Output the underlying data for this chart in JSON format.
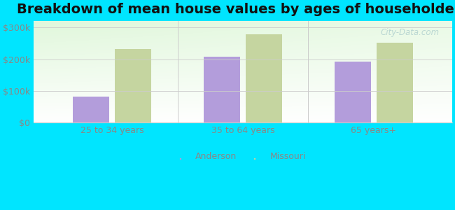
{
  "title": "Breakdown of mean house values by ages of householders",
  "categories": [
    "25 to 34 years",
    "35 to 64 years",
    "65 years+"
  ],
  "anderson_values": [
    82000,
    207000,
    193000
  ],
  "missouri_values": [
    233000,
    278000,
    252000
  ],
  "anderson_color": "#b39ddb",
  "missouri_color": "#c5d5a0",
  "ylim": [
    0,
    320000
  ],
  "yticks": [
    0,
    100000,
    200000,
    300000
  ],
  "ytick_labels": [
    "$0",
    "$100k",
    "$200k",
    "$300k"
  ],
  "background_color": "#00e5ff",
  "legend_labels": [
    "Anderson",
    "Missouri"
  ],
  "bar_width": 0.28,
  "title_fontsize": 14,
  "tick_fontsize": 9,
  "legend_fontsize": 9,
  "tick_color": "#888888",
  "watermark": "City-Data.com"
}
